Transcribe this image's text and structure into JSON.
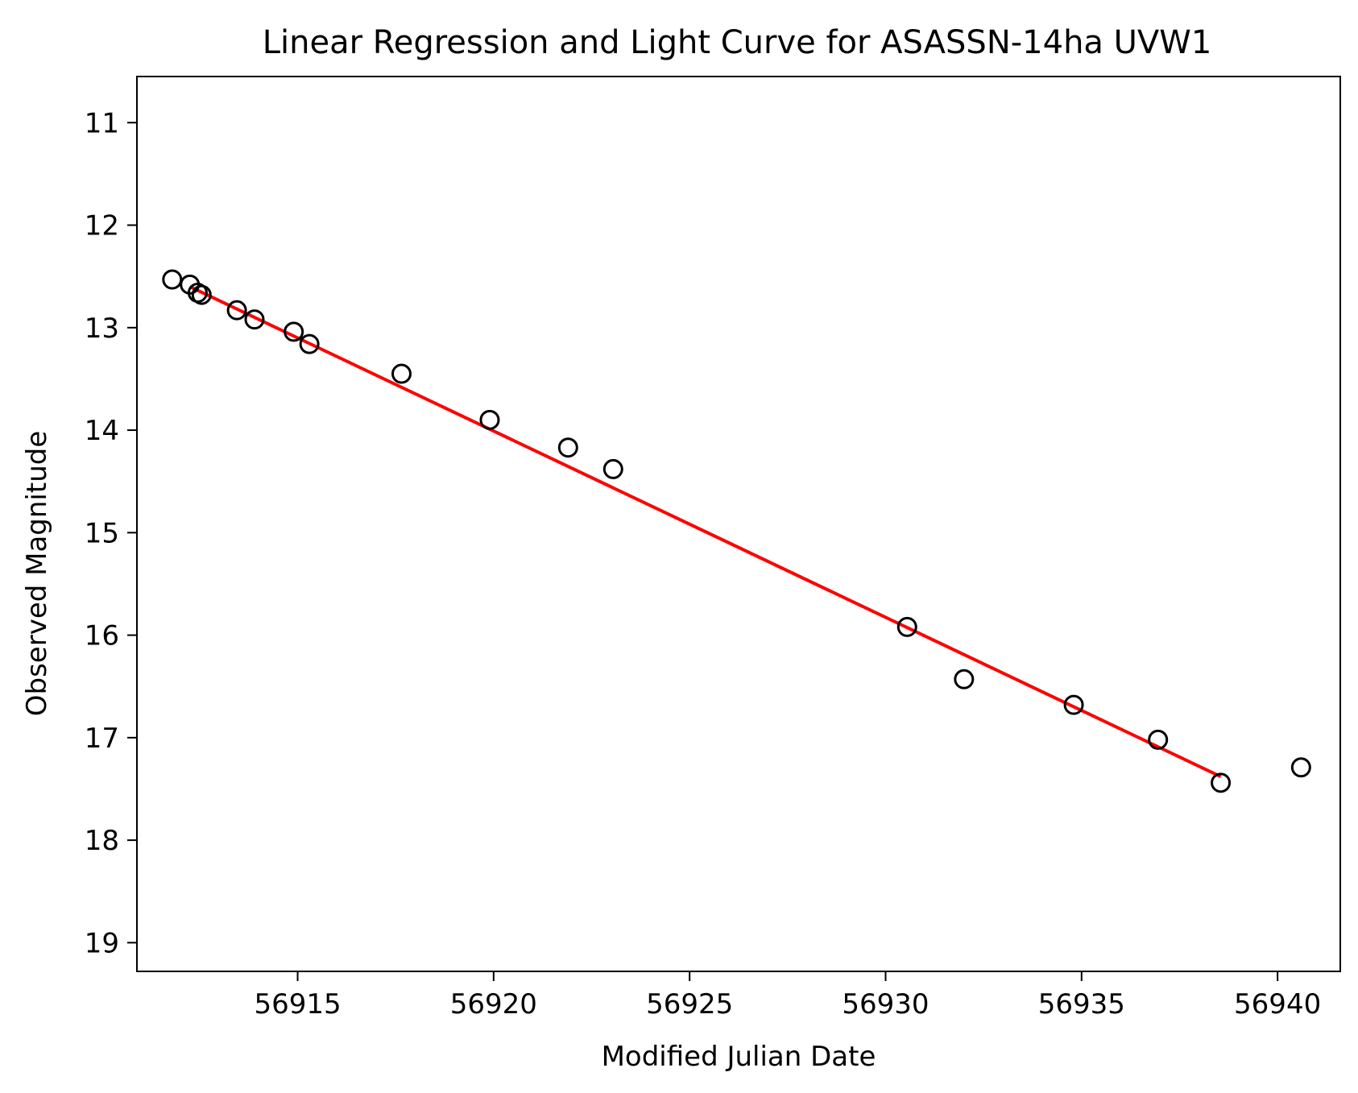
{
  "chart_data": {
    "type": "scatter",
    "title": "Linear Regression and Light Curve for ASASSN-14ha UVW1",
    "xlabel": "Modified Julian Date",
    "ylabel": "Observed Magnitude",
    "xlim": [
      56910.9,
      56941.6
    ],
    "ylim": [
      19.28,
      10.55
    ],
    "y_inverted": true,
    "xticks": [
      56915,
      56920,
      56925,
      56930,
      56935,
      56940
    ],
    "yticks": [
      11,
      12,
      13,
      14,
      15,
      16,
      17,
      18,
      19
    ],
    "grid": false,
    "legend": "none",
    "series": [
      {
        "kind": "scatter",
        "marker": "open-circle",
        "color": "#000000",
        "x": [
          56911.8,
          56912.25,
          56912.45,
          56912.55,
          56913.45,
          56913.9,
          56914.9,
          56915.3,
          56917.65,
          56919.9,
          56921.9,
          56923.05,
          56930.55,
          56932.0,
          56934.8,
          56936.95,
          56938.55,
          56940.6
        ],
        "y": [
          12.53,
          12.58,
          12.66,
          12.68,
          12.83,
          12.92,
          13.04,
          13.16,
          13.45,
          13.9,
          14.17,
          14.38,
          15.92,
          16.43,
          16.68,
          17.02,
          17.44,
          17.29
        ]
      },
      {
        "kind": "line",
        "color": "#ff0000",
        "x": [
          56912.25,
          56938.55
        ],
        "y": [
          12.6,
          17.38
        ]
      }
    ]
  }
}
